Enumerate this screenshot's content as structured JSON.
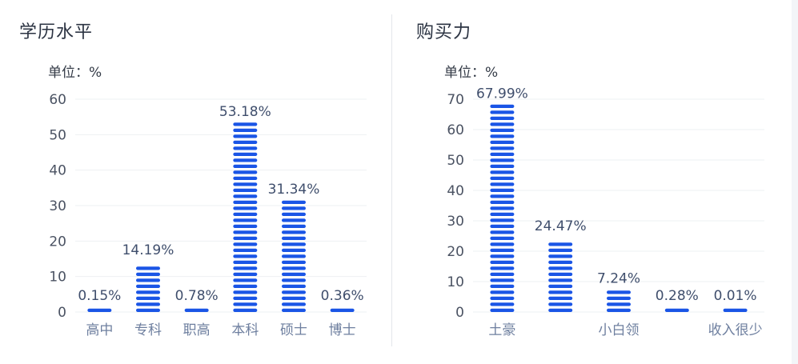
{
  "panels": [
    {
      "title": "学历水平",
      "chart_data": {
        "type": "bar",
        "unit_label": "单位：%",
        "categories": [
          "高中",
          "专科",
          "职高",
          "本科",
          "硕士",
          "博士"
        ],
        "values": [
          0.15,
          14.19,
          0.78,
          53.18,
          31.34,
          0.36
        ],
        "data_labels": [
          "0.15%",
          "14.19%",
          "0.78%",
          "53.18%",
          "31.34%",
          "0.36%"
        ],
        "yticks": [
          0,
          10,
          20,
          30,
          40,
          50,
          60
        ],
        "ylim": [
          0,
          60
        ],
        "grid": true,
        "bar_color": "#1a55e6"
      }
    },
    {
      "title": "购买力",
      "chart_data": {
        "type": "bar",
        "unit_label": "单位：%",
        "categories": [
          "土豪",
          "",
          "小白领",
          "",
          "收入很少"
        ],
        "values": [
          67.99,
          24.47,
          7.24,
          0.28,
          0.01
        ],
        "data_labels": [
          "67.99%",
          "24.47%",
          "7.24%",
          "0.28%",
          "0.01%"
        ],
        "yticks": [
          0,
          10,
          20,
          30,
          40,
          50,
          60,
          70
        ],
        "ylim": [
          0,
          70
        ],
        "grid": true,
        "bar_color": "#1a55e6"
      }
    }
  ]
}
